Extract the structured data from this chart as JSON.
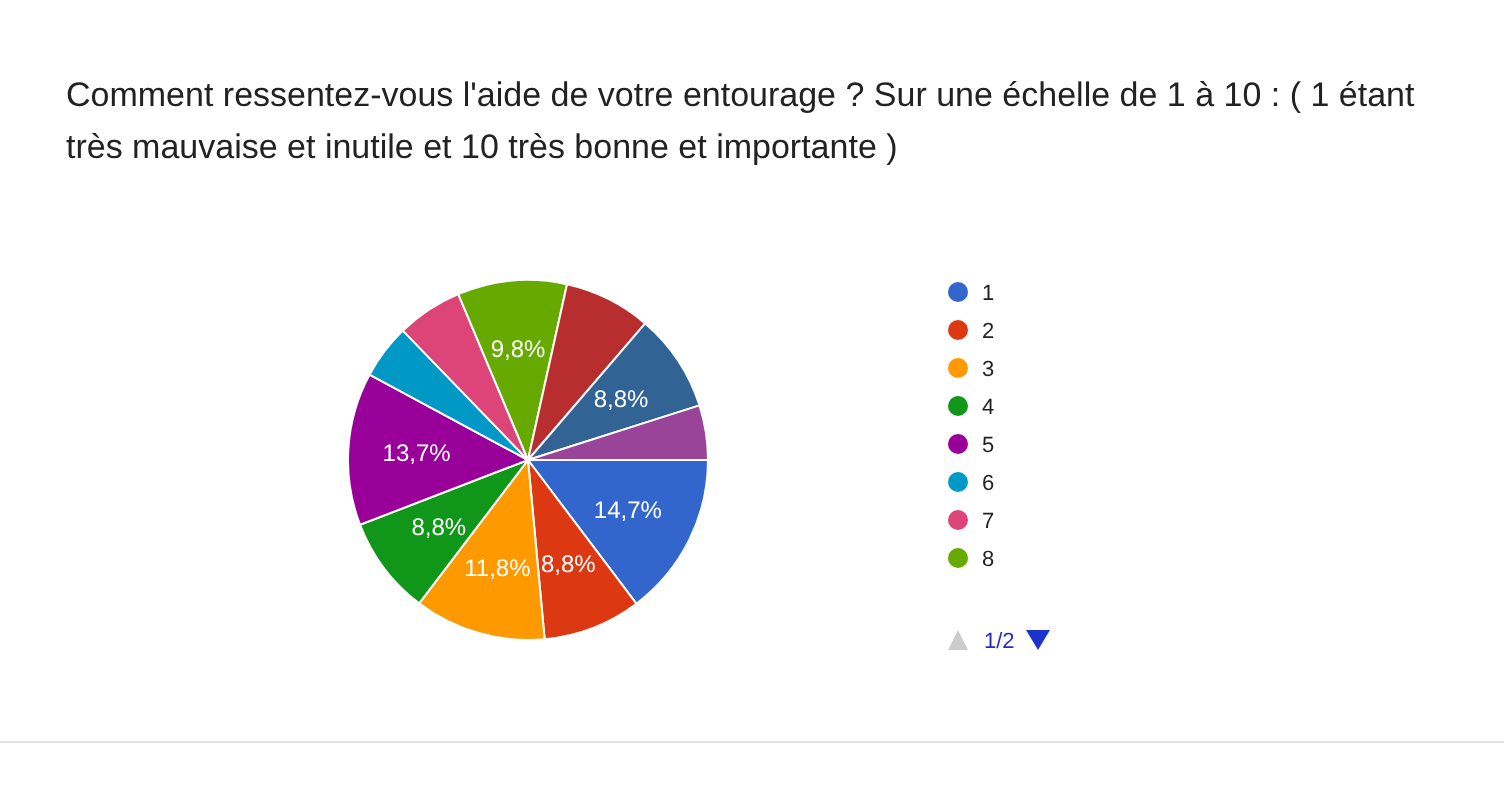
{
  "chart_data": {
    "type": "pie",
    "title": "Comment ressentez-vous l'aide de votre entourage ? Sur une échelle de 1 à 10 : ( 1 étant très mauvaise et inutile et 10 très bonne et importante )",
    "categories": [
      "1",
      "2",
      "3",
      "4",
      "5",
      "6",
      "7",
      "8",
      null,
      null,
      null
    ],
    "values": [
      14.7,
      8.8,
      11.8,
      8.8,
      13.7,
      4.9,
      5.9,
      9.8,
      7.8,
      8.8,
      4.9
    ],
    "colors": [
      "#3366cc",
      "#dc3912",
      "#ff9900",
      "#109618",
      "#990099",
      "#0099c6",
      "#dd4477",
      "#66aa00",
      "#b82e2e",
      "#316395",
      "#994499"
    ],
    "value_labels": [
      "14,7%",
      "8,8%",
      "11,8%",
      "8,8%",
      "13,7%",
      null,
      null,
      "9,8%",
      null,
      "8,8%",
      null
    ],
    "legend": "right",
    "annotations": [
      "1/2"
    ]
  }
}
